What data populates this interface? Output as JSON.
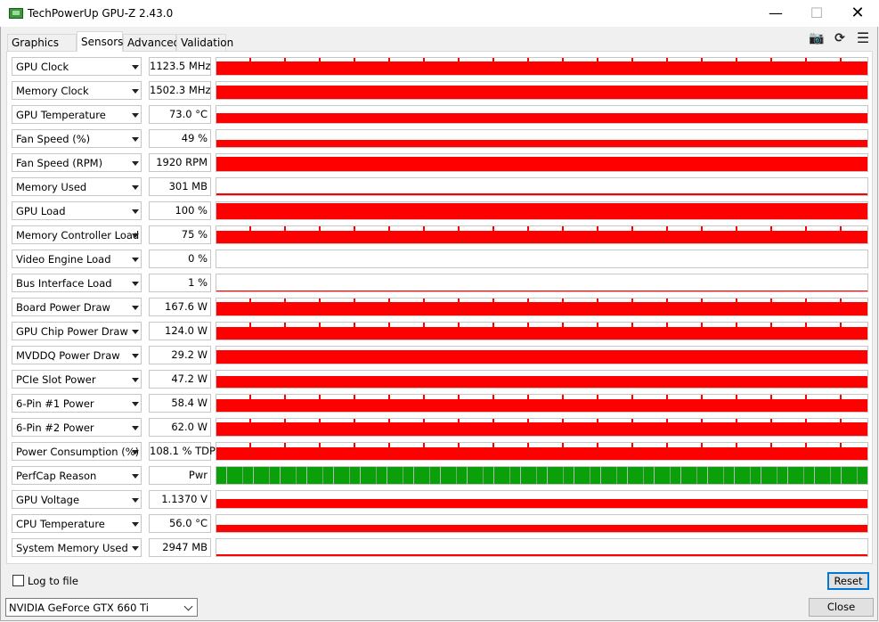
{
  "window": {
    "title": "TechPowerUp GPU-Z 2.43.0",
    "minimize_symbol": "—",
    "maximize_symbol": "☐",
    "close_symbol": "✕"
  },
  "tabs": [
    {
      "label": "Graphics Card"
    },
    {
      "label": "Sensors"
    },
    {
      "label": "Advanced"
    },
    {
      "label": "Validation"
    }
  ],
  "toolbar_icons": [
    "camera-icon",
    "refresh-icon",
    "menu-icon"
  ],
  "toolbar_glyphs": {
    "camera": "📷",
    "refresh": "⟳",
    "menu": "☰"
  },
  "sensors": [
    {
      "name": "GPU Clock",
      "value": "1123.5 MHz",
      "level": 0.8,
      "noise": true
    },
    {
      "name": "Memory Clock",
      "value": "1502.3 MHz",
      "level": 0.8,
      "noise": false
    },
    {
      "name": "GPU Temperature",
      "value": "73.0 °C",
      "level": 0.6,
      "noise": false
    },
    {
      "name": "Fan Speed (%)",
      "value": "49 %",
      "level": 0.4,
      "noise": false
    },
    {
      "name": "Fan Speed (RPM)",
      "value": "1920 RPM",
      "level": 0.85,
      "noise": false
    },
    {
      "name": "Memory Used",
      "value": "301 MB",
      "level": 0.08,
      "noise": false
    },
    {
      "name": "GPU Load",
      "value": "100 %",
      "level": 0.95,
      "noise": false
    },
    {
      "name": "Memory Controller Load",
      "value": "75 %",
      "level": 0.75,
      "noise": true
    },
    {
      "name": "Video Engine Load",
      "value": "0 %",
      "level": 0,
      "noise": false
    },
    {
      "name": "Bus Interface Load",
      "value": "1 %",
      "level": 0.02,
      "noise": false
    },
    {
      "name": "Board Power Draw",
      "value": "167.6 W",
      "level": 0.8,
      "noise": true
    },
    {
      "name": "GPU Chip Power Draw",
      "value": "124.0 W",
      "level": 0.75,
      "noise": true
    },
    {
      "name": "MVDDQ Power Draw",
      "value": "29.2 W",
      "level": 0.8,
      "noise": false
    },
    {
      "name": "PCIe Slot Power",
      "value": "47.2 W",
      "level": 0.7,
      "noise": false
    },
    {
      "name": "6-Pin #1 Power",
      "value": "58.4 W",
      "level": 0.75,
      "noise": true
    },
    {
      "name": "6-Pin #2 Power",
      "value": "62.0 W",
      "level": 0.8,
      "noise": true
    },
    {
      "name": "Power Consumption (%)",
      "value": "108.1 % TDP",
      "level": 0.75,
      "noise": true
    },
    {
      "name": "PerfCap Reason",
      "value": "Pwr",
      "level": 1.0,
      "noise": false,
      "green": true
    },
    {
      "name": "GPU Voltage",
      "value": "1.1370 V",
      "level": 0.55,
      "noise": false
    },
    {
      "name": "CPU Temperature",
      "value": "56.0 °C",
      "level": 0.4,
      "noise": false
    },
    {
      "name": "System Memory Used",
      "value": "2947 MB",
      "level": 0.08,
      "noise": false
    }
  ],
  "log_to_file": {
    "label": "Log to file",
    "checked": false
  },
  "reset_label": "Reset",
  "gpu_select": {
    "value": "NVIDIA GeForce GTX 660 Ti"
  },
  "close_label": "Close",
  "colors": {
    "graph_red": "#ff0000",
    "perfcap_green": "#0aa00a"
  }
}
